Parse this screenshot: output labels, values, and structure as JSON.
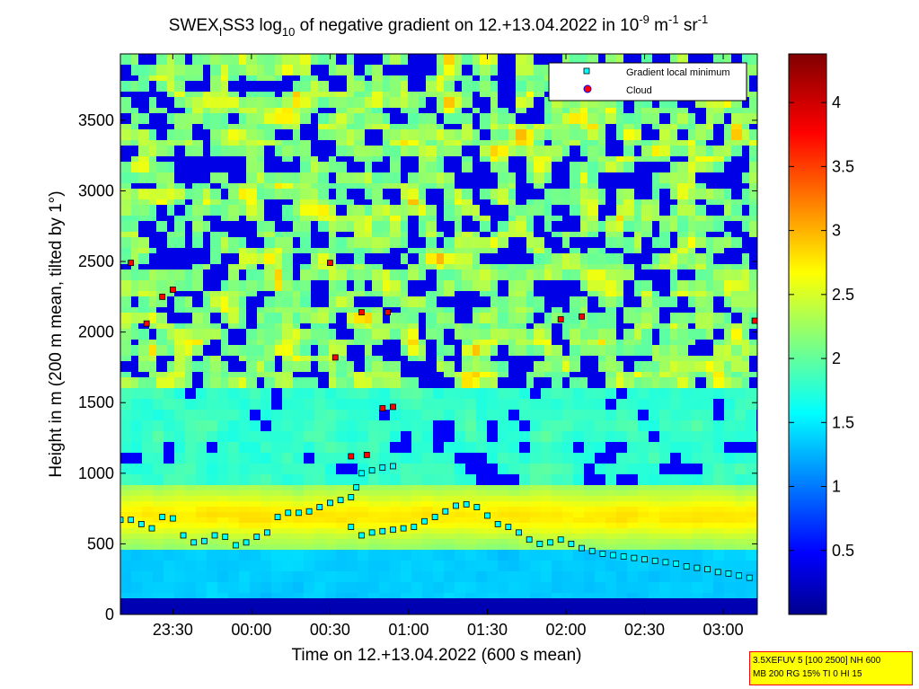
{
  "chart_data": {
    "type": "heatmap",
    "title": {
      "part1": "SWEX",
      "sub1": "I",
      "part2": "SS3 log",
      "sub2": "10",
      "part3": " of negative gradient on 12.+13.04.2022 in 10",
      "sup1": "-9",
      "part4": " m",
      "sup2": "-1",
      "part5": " sr",
      "sup3": "-1"
    },
    "xlabel": "Time on 12.+13.04.2022 (600 s mean)",
    "ylabel": "Height in m (200 m mean, tilted by 1°)",
    "x_ticks": [
      "23:30",
      "00:00",
      "00:30",
      "01:00",
      "01:30",
      "02:00",
      "02:30",
      "03:00"
    ],
    "x_range": [
      "23:10",
      "03:13"
    ],
    "y_ticks": [
      "0",
      "500",
      "1000",
      "1500",
      "2000",
      "2500",
      "3000",
      "3500"
    ],
    "y_range": [
      0,
      3970
    ],
    "colorbar": {
      "ticks": [
        "0.5",
        "1",
        "1.5",
        "2",
        "2.5",
        "3",
        "3.5",
        "4"
      ],
      "range": [
        0,
        4.38
      ],
      "colormap": "jet"
    },
    "legend": {
      "placement": "top-right",
      "entries": [
        {
          "label": "Gradient local minimum",
          "marker": "square",
          "color": "#00ffff"
        },
        {
          "label": "Cloud",
          "marker": "circle",
          "color": "#ff0000"
        }
      ]
    },
    "series": [
      {
        "name": "Gradient local minimum",
        "description_of_trace": "Main boundary layer trace",
        "points": [
          [
            "23:10",
            670
          ],
          [
            "23:14",
            670
          ],
          [
            "23:18",
            640
          ],
          [
            "23:22",
            610
          ],
          [
            "23:26",
            690
          ],
          [
            "23:30",
            680
          ],
          [
            "23:34",
            560
          ],
          [
            "23:38",
            510
          ],
          [
            "23:42",
            520
          ],
          [
            "23:46",
            560
          ],
          [
            "23:50",
            550
          ],
          [
            "23:54",
            490
          ],
          [
            "23:58",
            510
          ],
          [
            "00:02",
            550
          ],
          [
            "00:06",
            580
          ],
          [
            "00:10",
            690
          ],
          [
            "00:14",
            720
          ],
          [
            "00:18",
            720
          ],
          [
            "00:22",
            730
          ],
          [
            "00:26",
            760
          ],
          [
            "00:30",
            790
          ],
          [
            "00:34",
            810
          ],
          [
            "00:38",
            830
          ],
          [
            "00:40",
            900
          ],
          [
            "00:42",
            1000
          ],
          [
            "00:46",
            1020
          ],
          [
            "00:50",
            1040
          ],
          [
            "00:54",
            1050
          ],
          [
            "00:38",
            620
          ],
          [
            "00:42",
            560
          ],
          [
            "00:46",
            580
          ],
          [
            "00:50",
            590
          ],
          [
            "00:54",
            600
          ],
          [
            "00:58",
            610
          ],
          [
            "01:02",
            620
          ],
          [
            "01:06",
            660
          ],
          [
            "01:10",
            690
          ],
          [
            "01:14",
            730
          ],
          [
            "01:18",
            770
          ],
          [
            "01:22",
            780
          ],
          [
            "01:26",
            760
          ],
          [
            "01:30",
            700
          ],
          [
            "01:34",
            640
          ],
          [
            "01:38",
            620
          ],
          [
            "01:42",
            580
          ],
          [
            "01:46",
            530
          ],
          [
            "01:50",
            500
          ],
          [
            "01:54",
            510
          ],
          [
            "01:58",
            530
          ],
          [
            "02:02",
            500
          ],
          [
            "02:06",
            470
          ],
          [
            "02:10",
            450
          ],
          [
            "02:14",
            430
          ],
          [
            "02:18",
            420
          ],
          [
            "02:22",
            410
          ],
          [
            "02:26",
            400
          ],
          [
            "02:30",
            390
          ],
          [
            "02:34",
            380
          ],
          [
            "02:38",
            370
          ],
          [
            "02:42",
            360
          ],
          [
            "02:46",
            340
          ],
          [
            "02:50",
            330
          ],
          [
            "02:54",
            320
          ],
          [
            "02:58",
            300
          ],
          [
            "03:02",
            290
          ],
          [
            "03:06",
            275
          ],
          [
            "03:10",
            260
          ]
        ]
      },
      {
        "name": "Cloud",
        "points": [
          [
            "23:14",
            2490
          ],
          [
            "23:20",
            2060
          ],
          [
            "23:26",
            2250
          ],
          [
            "23:30",
            2300
          ],
          [
            "00:30",
            2490
          ],
          [
            "00:32",
            1820
          ],
          [
            "00:38",
            1120
          ],
          [
            "00:44",
            1130
          ],
          [
            "00:50",
            1460
          ],
          [
            "00:54",
            1470
          ],
          [
            "00:52",
            2140
          ],
          [
            "00:42",
            2140
          ],
          [
            "01:58",
            2090
          ],
          [
            "02:06",
            2110
          ],
          [
            "03:12",
            2080
          ]
        ]
      }
    ]
  },
  "info_box": {
    "line1": "3.5XEFUV 5 [100 2500] NH 600",
    "line2": "MB 200 RG 15% TI 0 HI 15"
  }
}
